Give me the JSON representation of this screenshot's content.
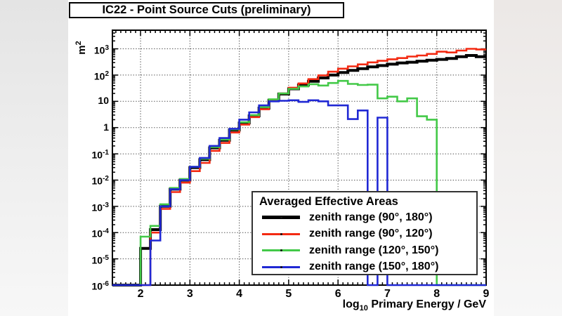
{
  "page": {
    "title": "IC22 - Point Source Cuts (preliminary)"
  },
  "chart_data": {
    "type": "line",
    "style": "step-histogram-log-y",
    "title": "IC22 - Point Source Cuts (preliminary)",
    "xlabel": {
      "pre": "log",
      "sub": "10",
      "post": " Primary Energy / GeV"
    },
    "ylabel": {
      "text": "m",
      "sup": "2"
    },
    "x_scale": "linear",
    "y_scale": "log",
    "xlim": [
      1.43,
      9.0
    ],
    "ylim": [
      1e-06,
      5100
    ],
    "ylim_exponents": [
      -6,
      3.71
    ],
    "x_ticks": [
      2,
      3,
      4,
      5,
      6,
      7,
      8,
      9
    ],
    "x_minor_step": 0.1,
    "y_tick_exponents": [
      3,
      2,
      1,
      0,
      -1,
      -2,
      -3,
      -4,
      -5,
      -6
    ],
    "grid": true,
    "grid_style": "dotted",
    "baseline": 1e-06,
    "bin_start": 2.0,
    "bin_width": 0.2,
    "legend": {
      "title": "Averaged Effective Areas",
      "position": "bottom-right"
    },
    "series": [
      {
        "name": "zenith range (90°, 180°)",
        "color": "#000000",
        "line_width": 4,
        "values": [
          2.5e-05,
          0.00013,
          0.001,
          0.0045,
          0.01,
          0.03,
          0.06,
          0.17,
          0.33,
          0.8,
          1.5,
          2.8,
          5.5,
          11,
          19,
          30,
          42,
          58,
          78,
          100,
          125,
          150,
          175,
          205,
          230,
          260,
          290,
          310,
          340,
          370,
          395,
          430,
          500,
          560,
          500
        ]
      },
      {
        "name": "zenith range (90°, 120°)",
        "color": "#f32a12",
        "line_width": 2.6,
        "values": [
          1e-06,
          0.0001,
          0.0008,
          0.0035,
          0.008,
          0.022,
          0.045,
          0.13,
          0.26,
          0.65,
          1.3,
          2.5,
          5.0,
          10.5,
          20,
          33,
          48,
          70,
          98,
          135,
          175,
          215,
          255,
          305,
          350,
          400,
          445,
          510,
          560,
          640,
          780,
          730,
          860,
          1000,
          950
        ]
      },
      {
        "name": "zenith range (120°, 150°)",
        "color": "#43c948",
        "line_width": 2.6,
        "values": [
          7e-05,
          0.00018,
          0.0012,
          0.005,
          0.011,
          0.032,
          0.065,
          0.18,
          0.35,
          0.85,
          1.6,
          3.0,
          6.0,
          12,
          20,
          30,
          37,
          45,
          40,
          50,
          60,
          46,
          42,
          43,
          13,
          15,
          10,
          13,
          2.7,
          2.0,
          1e-06,
          1e-06,
          1e-06,
          1e-06,
          1e-06
        ]
      },
      {
        "name": "zenith range (150°, 180°)",
        "color": "#2028d4",
        "line_width": 2.6,
        "values": [
          1e-06,
          5e-05,
          0.001,
          0.0045,
          0.01,
          0.032,
          0.07,
          0.2,
          0.4,
          0.9,
          2.0,
          3.8,
          7.0,
          10,
          10.5,
          11,
          9.5,
          11,
          10,
          7,
          7,
          2.1,
          4.5,
          1e-06,
          2.4,
          1e-06,
          1e-06,
          1e-06,
          1e-06,
          1e-06,
          1e-06,
          1e-06,
          1e-06,
          1e-06,
          1e-06
        ]
      }
    ]
  }
}
